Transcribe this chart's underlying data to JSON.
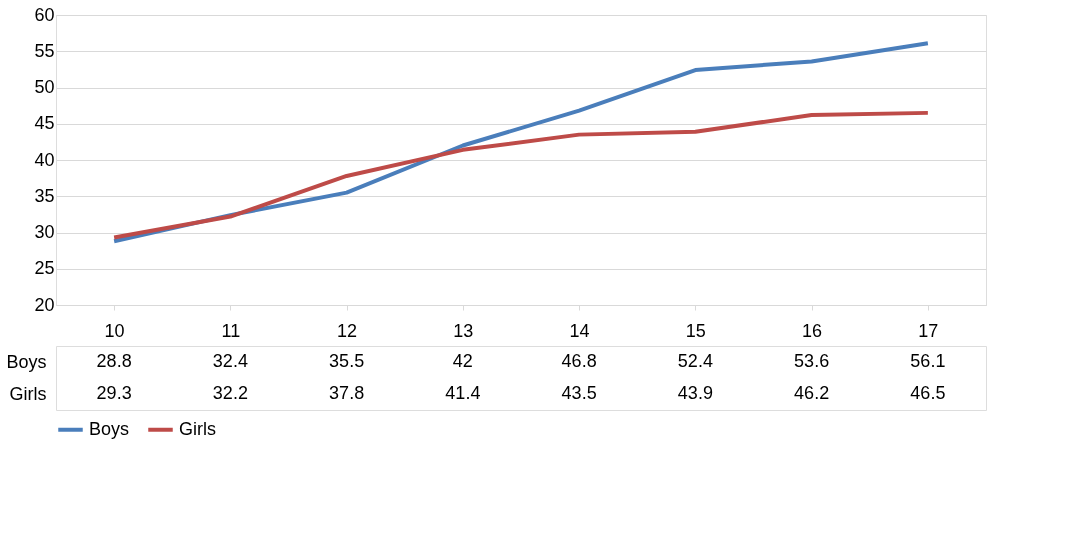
{
  "chart_data": {
    "type": "line",
    "categories": [
      "10",
      "11",
      "12",
      "13",
      "14",
      "15",
      "16",
      "17"
    ],
    "series": [
      {
        "name": "Boys",
        "color": "#4a7ebb",
        "values": [
          28.8,
          32.4,
          35.5,
          42,
          46.8,
          52.4,
          53.6,
          56.1
        ]
      },
      {
        "name": "Girls",
        "color": "#be4b48",
        "values": [
          29.3,
          32.2,
          37.8,
          41.4,
          43.5,
          43.9,
          46.2,
          46.5
        ]
      }
    ],
    "ylim": [
      20,
      60
    ],
    "yticks": [
      20,
      25,
      30,
      35,
      40,
      45,
      50,
      55,
      60
    ],
    "grid": "y",
    "legend": "bottom",
    "data_labels": true
  }
}
